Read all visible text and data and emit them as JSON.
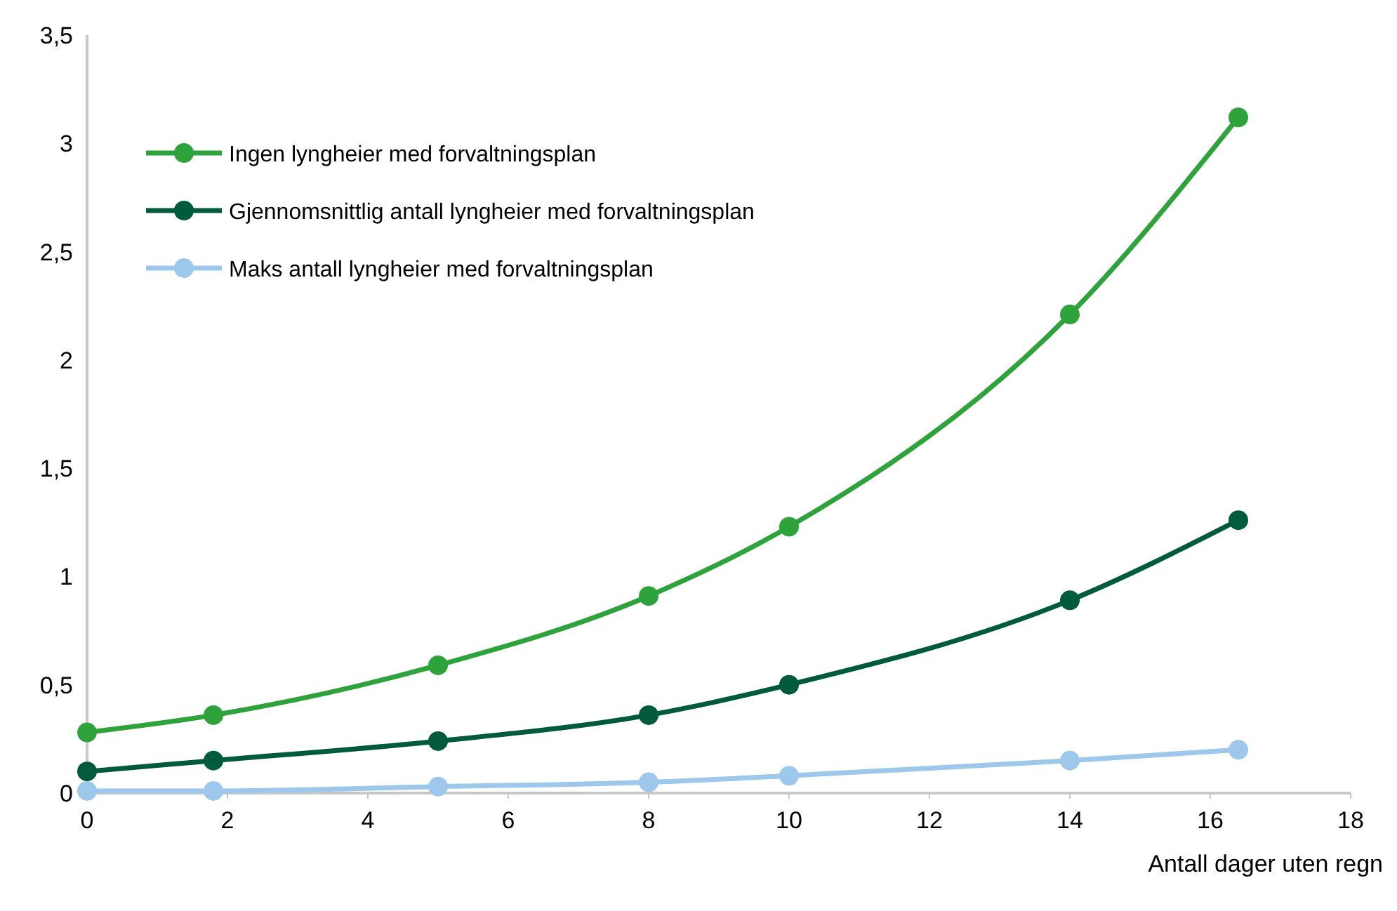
{
  "chart_data": {
    "type": "line",
    "xlabel": "Antall dager uten regn",
    "x": [
      0,
      1.8,
      5,
      8,
      10,
      14,
      16.4
    ],
    "xlim": [
      0,
      18
    ],
    "xticks": [
      0,
      2,
      4,
      6,
      8,
      10,
      12,
      14,
      16,
      18
    ],
    "ylim": [
      0,
      3.5
    ],
    "yticks": [
      {
        "value": 0,
        "label": "0"
      },
      {
        "value": 0.5,
        "label": "0,5"
      },
      {
        "value": 1,
        "label": "1"
      },
      {
        "value": 1.5,
        "label": "1,5"
      },
      {
        "value": 2,
        "label": "2"
      },
      {
        "value": 2.5,
        "label": "2,5"
      },
      {
        "value": 3,
        "label": "3"
      },
      {
        "value": 3.5,
        "label": "3,5"
      }
    ],
    "series": [
      {
        "name": "Ingen lyngheier med forvaltningsplan",
        "color": "#2ea33c",
        "values": [
          0.28,
          0.36,
          0.59,
          0.91,
          1.23,
          2.21,
          3.12
        ]
      },
      {
        "name": "Gjennomsnittlig antall lyngheier med forvaltningsplan",
        "color": "#005a3c",
        "values": [
          0.1,
          0.15,
          0.24,
          0.36,
          0.5,
          0.89,
          1.26
        ]
      },
      {
        "name": "Maks antall lyngheier med forvaltningsplan",
        "color": "#9dc8ec",
        "values": [
          0.01,
          0.01,
          0.03,
          0.05,
          0.08,
          0.15,
          0.2
        ]
      }
    ],
    "legend": "top left",
    "marker": "circle",
    "line_style": "solid",
    "grid": false
  }
}
